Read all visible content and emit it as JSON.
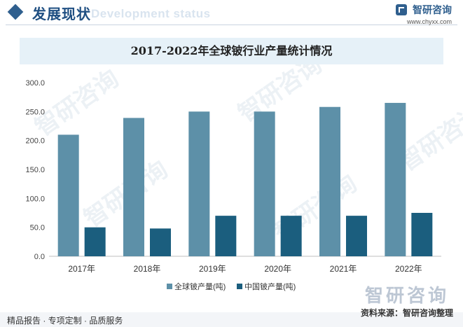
{
  "header": {
    "title": "发展现状",
    "subtitle_en": "Development status",
    "brand_name": "智研咨询",
    "brand_url": "www.chyxx.com"
  },
  "watermark": {
    "text": "智研咨询"
  },
  "colors": {
    "global": "#5d90a8",
    "china": "#1b5e7e",
    "header": "#2f5f8e"
  },
  "chart_data": {
    "type": "bar",
    "title": "2017-2022年全球铍行业产量统计情况",
    "categories": [
      "2017年",
      "2018年",
      "2019年",
      "2020年",
      "2021年",
      "2022年"
    ],
    "series": [
      {
        "name": "全球铍产量(吨)",
        "values": [
          210,
          239,
          250,
          250,
          258,
          265
        ]
      },
      {
        "name": "中国铍产量(吨)",
        "values": [
          50,
          48,
          70,
          70,
          70,
          75
        ]
      }
    ],
    "ylim": [
      0,
      300
    ],
    "yticks": [
      "0.0",
      "50.0",
      "100.0",
      "150.0",
      "200.0",
      "250.0",
      "300.0"
    ],
    "legend_position": "bottom",
    "grid": false
  },
  "footer": {
    "left": "精品报告 · 专项定制 · 品质服务",
    "right": "资料来源：智研咨询整理"
  }
}
